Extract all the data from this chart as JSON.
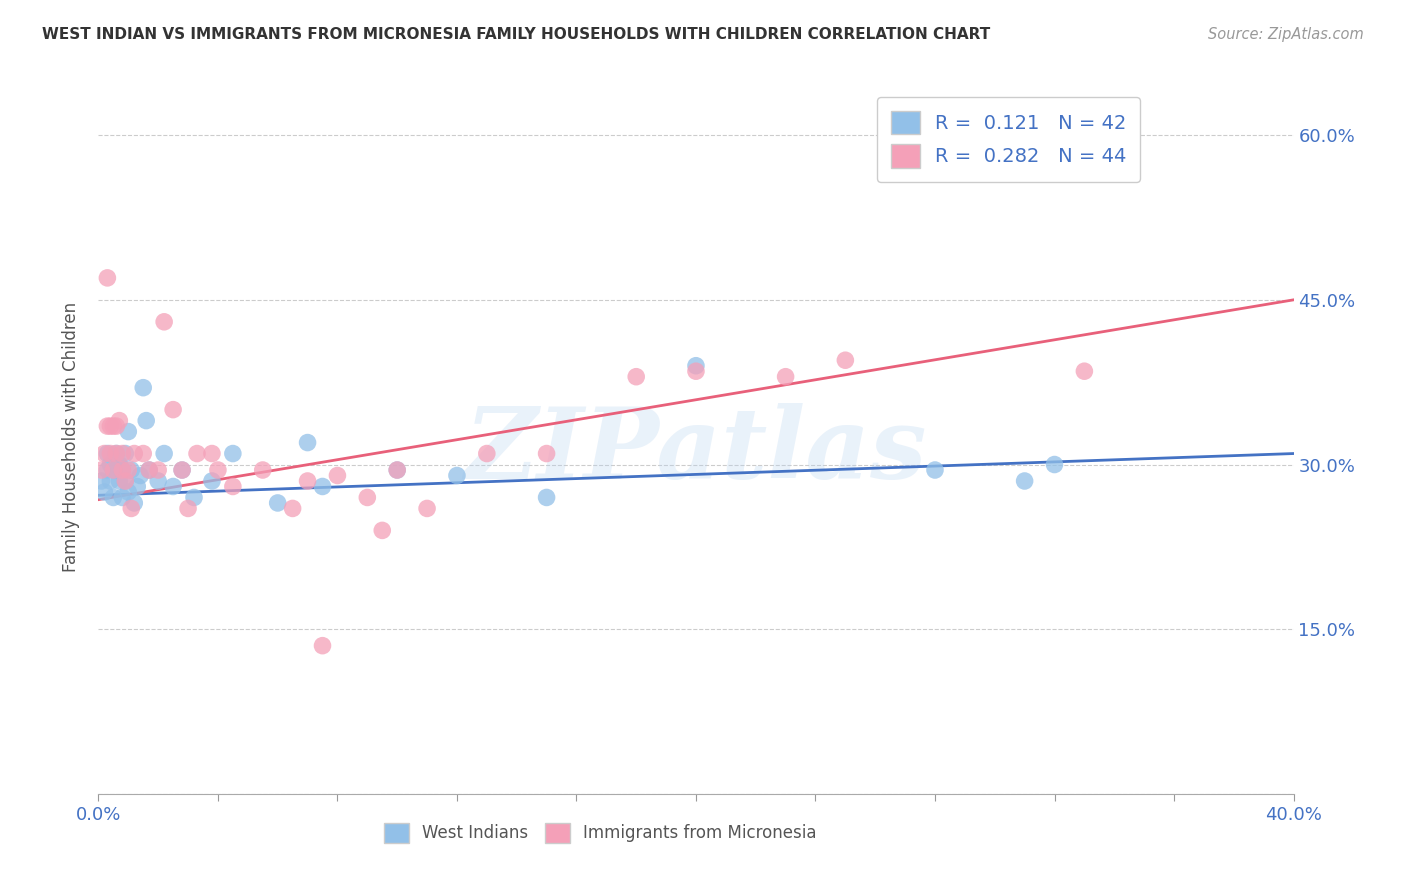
{
  "title": "WEST INDIAN VS IMMIGRANTS FROM MICRONESIA FAMILY HOUSEHOLDS WITH CHILDREN CORRELATION CHART",
  "source": "Source: ZipAtlas.com",
  "ylabel": "Family Households with Children",
  "xlim": [
    0.0,
    0.4
  ],
  "ylim": [
    0.0,
    0.65
  ],
  "color_blue": "#92C0E8",
  "color_pink": "#F4A0B8",
  "color_blue_line": "#4472C4",
  "color_pink_line": "#E8607A",
  "legend_R1": "0.121",
  "legend_N1": "42",
  "legend_R2": "0.282",
  "legend_N2": "44",
  "blue_line_y0": 0.272,
  "blue_line_y1": 0.31,
  "pink_line_y0": 0.268,
  "pink_line_y1": 0.45,
  "west_indians_x": [
    0.001,
    0.002,
    0.003,
    0.003,
    0.004,
    0.004,
    0.005,
    0.005,
    0.006,
    0.006,
    0.007,
    0.007,
    0.008,
    0.008,
    0.009,
    0.009,
    0.01,
    0.01,
    0.011,
    0.012,
    0.013,
    0.014,
    0.015,
    0.016,
    0.017,
    0.02,
    0.022,
    0.025,
    0.028,
    0.032,
    0.038,
    0.045,
    0.06,
    0.07,
    0.075,
    0.1,
    0.12,
    0.15,
    0.2,
    0.28,
    0.31,
    0.32
  ],
  "west_indians_y": [
    0.285,
    0.275,
    0.295,
    0.31,
    0.285,
    0.3,
    0.295,
    0.27,
    0.295,
    0.31,
    0.285,
    0.3,
    0.27,
    0.295,
    0.285,
    0.31,
    0.275,
    0.33,
    0.295,
    0.265,
    0.28,
    0.29,
    0.37,
    0.34,
    0.295,
    0.285,
    0.31,
    0.28,
    0.295,
    0.27,
    0.285,
    0.31,
    0.265,
    0.32,
    0.28,
    0.295,
    0.29,
    0.27,
    0.39,
    0.295,
    0.285,
    0.3
  ],
  "micronesia_x": [
    0.001,
    0.002,
    0.003,
    0.003,
    0.004,
    0.004,
    0.005,
    0.005,
    0.006,
    0.006,
    0.007,
    0.008,
    0.008,
    0.009,
    0.01,
    0.011,
    0.012,
    0.015,
    0.017,
    0.02,
    0.022,
    0.025,
    0.028,
    0.03,
    0.033,
    0.038,
    0.04,
    0.045,
    0.055,
    0.065,
    0.07,
    0.075,
    0.08,
    0.09,
    0.095,
    0.1,
    0.11,
    0.13,
    0.15,
    0.18,
    0.2,
    0.23,
    0.25,
    0.33
  ],
  "micronesia_y": [
    0.295,
    0.31,
    0.47,
    0.335,
    0.335,
    0.31,
    0.335,
    0.295,
    0.335,
    0.31,
    0.34,
    0.295,
    0.31,
    0.285,
    0.295,
    0.26,
    0.31,
    0.31,
    0.295,
    0.295,
    0.43,
    0.35,
    0.295,
    0.26,
    0.31,
    0.31,
    0.295,
    0.28,
    0.295,
    0.26,
    0.285,
    0.135,
    0.29,
    0.27,
    0.24,
    0.295,
    0.26,
    0.31,
    0.31,
    0.38,
    0.385,
    0.38,
    0.395,
    0.385
  ],
  "background_color": "#FFFFFF",
  "grid_color": "#CCCCCC",
  "title_color": "#333333",
  "axis_color": "#4472C4",
  "watermark": "ZIPatlas",
  "legend_label_blue": "West Indians",
  "legend_label_pink": "Immigrants from Micronesia"
}
